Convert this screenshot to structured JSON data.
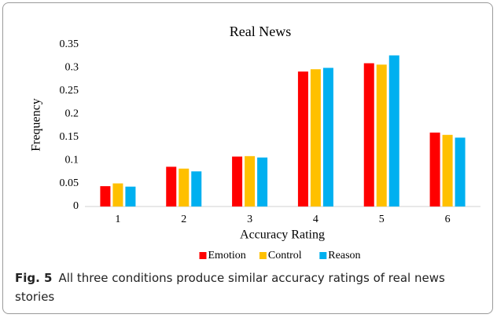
{
  "chart_data": {
    "type": "bar",
    "title": "Real News",
    "x_label": "Accuracy Rating",
    "y_label": "Frequency",
    "categories": [
      "1",
      "2",
      "3",
      "4",
      "5",
      "6"
    ],
    "series": [
      {
        "name": "Emotion",
        "color": "#ff0000",
        "values": [
          0.044,
          0.086,
          0.108,
          0.292,
          0.31,
          0.16
        ]
      },
      {
        "name": "Control",
        "color": "#ffc000",
        "values": [
          0.05,
          0.082,
          0.109,
          0.297,
          0.307,
          0.155
        ]
      },
      {
        "name": "Reason",
        "color": "#00b0f0",
        "values": [
          0.043,
          0.076,
          0.106,
          0.3,
          0.327,
          0.149
        ]
      }
    ],
    "ylim": [
      0,
      0.35
    ],
    "yticks": [
      0,
      0.05,
      0.1,
      0.15,
      0.2,
      0.25,
      0.3,
      0.35
    ],
    "grid": false,
    "legend": "bottom"
  },
  "caption": {
    "label": "Fig. 5",
    "text": "All three conditions produce similar accuracy ratings of real news stories"
  }
}
